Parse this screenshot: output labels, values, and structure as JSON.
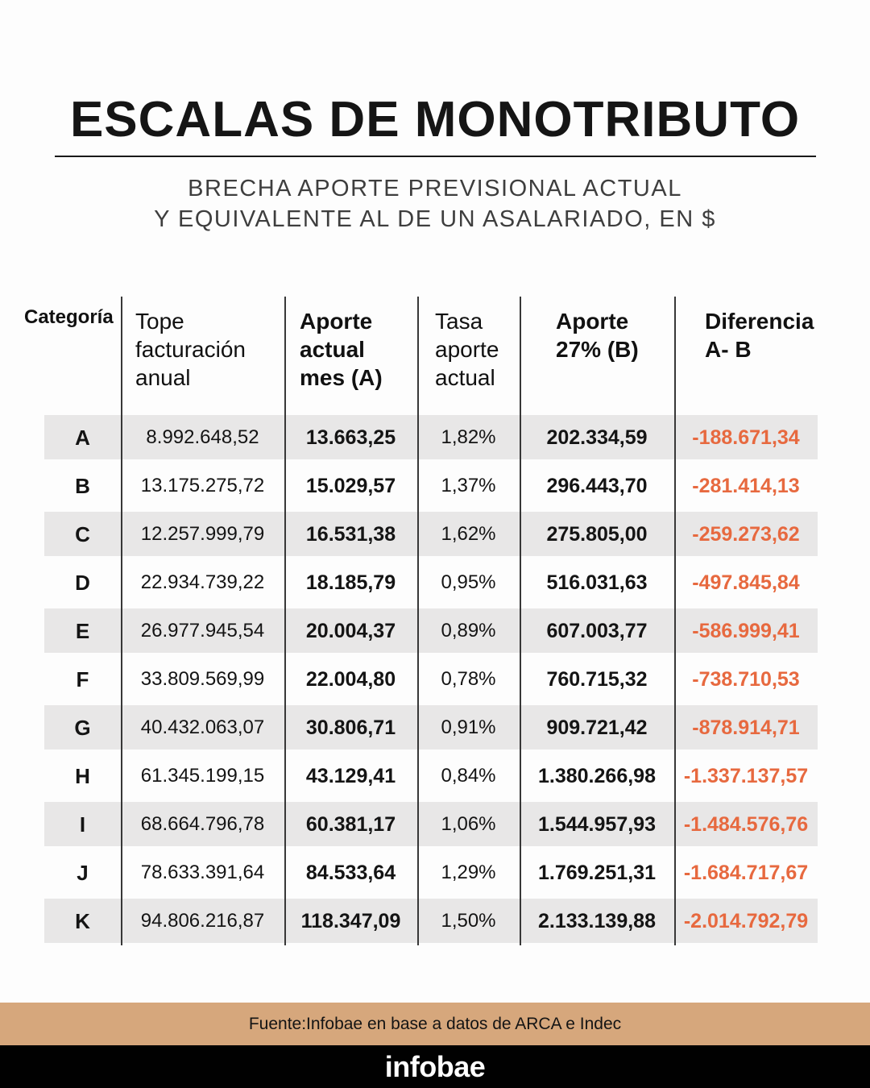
{
  "title": "ESCALAS DE MONOTRIBUTO",
  "subtitle": {
    "line1": "BRECHA APORTE PREVISIONAL ACTUAL",
    "line2": "Y EQUIVALENTE AL DE UN ASALARIADO, EN $"
  },
  "header_lines": [
    [
      "Categoría"
    ],
    [
      "Tope",
      "facturación",
      "anual"
    ],
    [
      "Aporte",
      "actual",
      "mes (A)"
    ],
    [
      "Tasa",
      "aporte",
      "actual"
    ],
    [
      "Aporte",
      "27% (B)"
    ],
    [
      "Diferencia",
      "A- B"
    ]
  ],
  "chart_data": {
    "type": "table",
    "title": "ESCALAS DE MONOTRIBUTO",
    "subtitle": "BRECHA APORTE PREVISIONAL ACTUAL Y EQUIVALENTE AL DE UN ASALARIADO, EN $",
    "columns": [
      "Categoría",
      "Tope facturación anual",
      "Aporte actual mes (A)",
      "Tasa aporte actual",
      "Aporte 27% (B)",
      "Diferencia A- B"
    ],
    "rows": [
      [
        "A",
        "8.992.648,52",
        "13.663,25",
        "1,82%",
        "202.334,59",
        "-188.671,34"
      ],
      [
        "B",
        "13.175.275,72",
        "15.029,57",
        "1,37%",
        "296.443,70",
        "-281.414,13"
      ],
      [
        "C",
        "12.257.999,79",
        "16.531,38",
        "1,62%",
        "275.805,00",
        "-259.273,62"
      ],
      [
        "D",
        "22.934.739,22",
        "18.185,79",
        "0,95%",
        "516.031,63",
        "-497.845,84"
      ],
      [
        "E",
        "26.977.945,54",
        "20.004,37",
        "0,89%",
        "607.003,77",
        "-586.999,41"
      ],
      [
        "F",
        "33.809.569,99",
        "22.004,80",
        "0,78%",
        "760.715,32",
        "-738.710,53"
      ],
      [
        "G",
        "40.432.063,07",
        "30.806,71",
        "0,91%",
        "909.721,42",
        "-878.914,71"
      ],
      [
        "H",
        "61.345.199,15",
        "43.129,41",
        "0,84%",
        "1.380.266,98",
        "-1.337.137,57"
      ],
      [
        "I",
        "68.664.796,78",
        "60.381,17",
        "1,06%",
        "1.544.957,93",
        "-1.484.576,76"
      ],
      [
        "J",
        "78.633.391,64",
        "84.533,64",
        "1,29%",
        "1.769.251,31",
        "-1.684.717,67"
      ],
      [
        "K",
        "94.806.216,87",
        "118.347,09",
        "1,50%",
        "2.133.139,88",
        "-2.014.792,79"
      ]
    ],
    "row_shading": "alternating starting at row A",
    "legend_position": "none",
    "grid": "vertical column dividers only"
  },
  "footer": {
    "source": "Fuente:Infobae en base a datos de ARCA e Indec",
    "brand": "infobae"
  },
  "colors": {
    "accent_orange": "#e7693f",
    "row_band_gray": "#e8e7e7",
    "source_bar_tan": "#d6a77c",
    "brand_bar_black": "#010101",
    "text_black": "#151515",
    "subtitle_gray": "#3e3e3e"
  }
}
